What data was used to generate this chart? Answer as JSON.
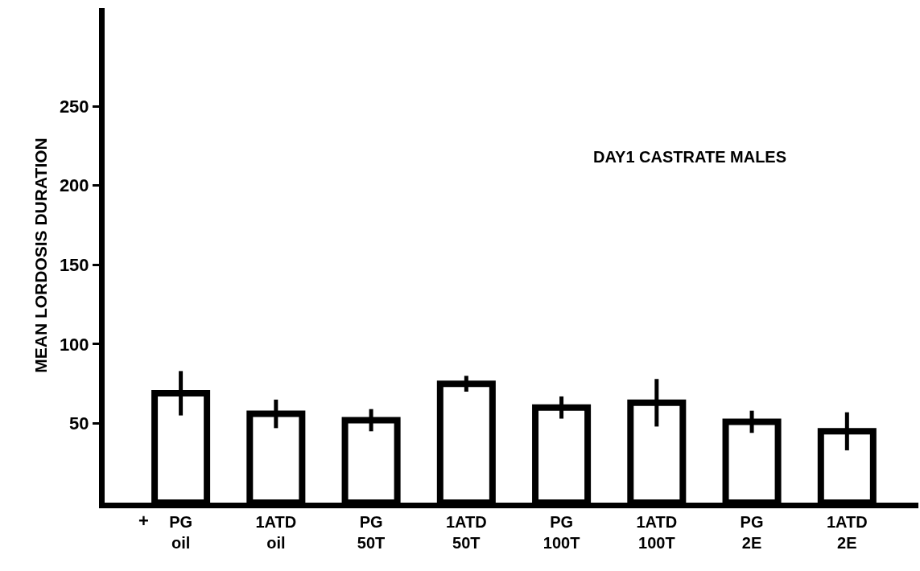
{
  "chart_data": {
    "type": "bar",
    "ylabel": "MEAN LORDOSIS DURATION",
    "categories": [
      "PG\noil",
      "1ATD\noil",
      "PG\n50T",
      "1ATD\n50T",
      "PG\n100T",
      "1ATD\n100T",
      "PG\n2E",
      "1ATD\n2E"
    ],
    "values": [
      69,
      56,
      52,
      75,
      60,
      63,
      51,
      45
    ],
    "errors": [
      14,
      9,
      7,
      5,
      7,
      15,
      7,
      12
    ],
    "color": "#ffffff",
    "ylim": [
      0,
      312
    ],
    "yticks": [
      50,
      100,
      150,
      200,
      250
    ],
    "annotations": [
      "DAY1 CASTRATE MALES",
      "+"
    ]
  }
}
